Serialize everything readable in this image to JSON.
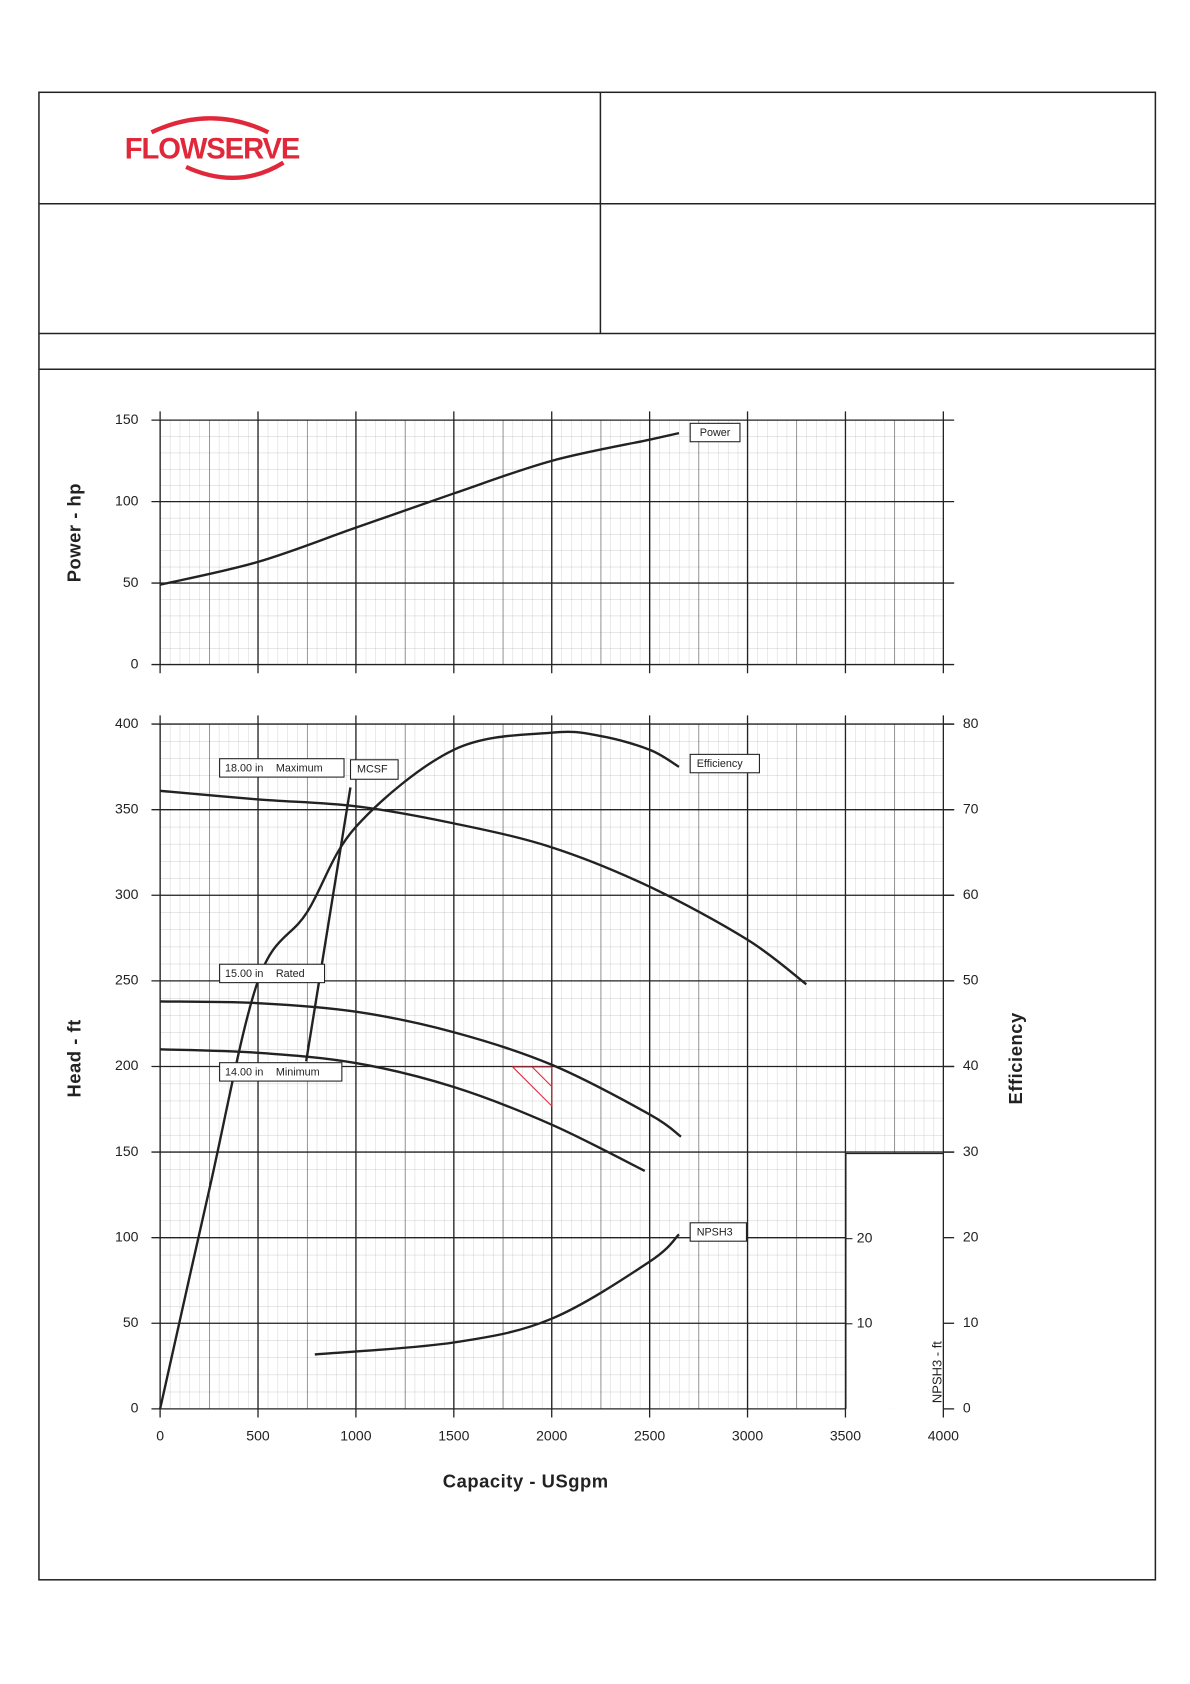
{
  "header": {
    "logo": "FLOWSERVE"
  },
  "chart_data": [
    {
      "type": "line",
      "y_label": "Power - hp",
      "xlim": [
        0,
        4000
      ],
      "xticks": [
        0,
        500,
        1000,
        1500,
        2000,
        2500,
        3000,
        3500,
        4000
      ],
      "ylim": [
        0,
        150
      ],
      "yticks": [
        0,
        50,
        100,
        150
      ],
      "grid": true,
      "series": [
        {
          "name": "Power",
          "color": "#222222",
          "x": [
            0,
            500,
            1000,
            1500,
            2000,
            2500,
            2650
          ],
          "values": [
            49,
            63,
            84,
            105,
            125,
            138,
            142
          ]
        }
      ]
    },
    {
      "type": "line",
      "x_label": "Capacity - USgpm",
      "y_label": "Head - ft",
      "y2_label": "Efficiency",
      "y3_label": "NPSH3 - ft",
      "xlim": [
        0,
        4000
      ],
      "xticks": [
        0,
        500,
        1000,
        1500,
        2000,
        2500,
        3000,
        3500,
        4000
      ],
      "ylim": [
        0,
        400
      ],
      "yticks": [
        0,
        50,
        100,
        150,
        200,
        250,
        300,
        350,
        400
      ],
      "y2lim": [
        0,
        80
      ],
      "y2ticks": [
        0,
        10,
        20,
        30,
        40,
        50,
        60,
        70,
        80
      ],
      "y3lim": [
        0,
        30
      ],
      "y3ticks": [
        10,
        20
      ],
      "grid": true,
      "series": [
        {
          "name": "Maximum",
          "diameter": "18.00 in",
          "color": "#222222",
          "x": [
            0,
            500,
            1000,
            1500,
            2000,
            2500,
            3000,
            3300
          ],
          "values": [
            361,
            356,
            352,
            342,
            328,
            305,
            274,
            248
          ]
        },
        {
          "name": "Rated",
          "diameter": "15.00 in",
          "color": "#222222",
          "x": [
            0,
            500,
            1000,
            1500,
            2000,
            2500,
            2660
          ],
          "values": [
            238,
            237,
            232,
            220,
            201,
            172,
            159
          ]
        },
        {
          "name": "Minimum",
          "diameter": "14.00 in",
          "color": "#222222",
          "x": [
            0,
            500,
            1000,
            1500,
            2000,
            2475
          ],
          "values": [
            210,
            208,
            202,
            188,
            166,
            139
          ]
        },
        {
          "name": "MCSF",
          "color": "#222222",
          "x": [
            746,
            972
          ],
          "values": [
            203,
            363
          ]
        },
        {
          "name": "Efficiency",
          "axis": "y2",
          "color": "#222222",
          "x": [
            0,
            250,
            500,
            750,
            1000,
            1500,
            2000,
            2250,
            2500,
            2650
          ],
          "values": [
            0,
            25.5,
            50,
            58,
            68,
            77,
            79,
            78.6,
            77,
            75
          ]
        },
        {
          "name": "NPSH3",
          "axis": "y3",
          "color": "#222222",
          "x": [
            790,
            1500,
            2000,
            2500,
            2650
          ],
          "values": [
            6.4,
            7.8,
            10.6,
            17.3,
            20.5
          ]
        }
      ]
    }
  ]
}
